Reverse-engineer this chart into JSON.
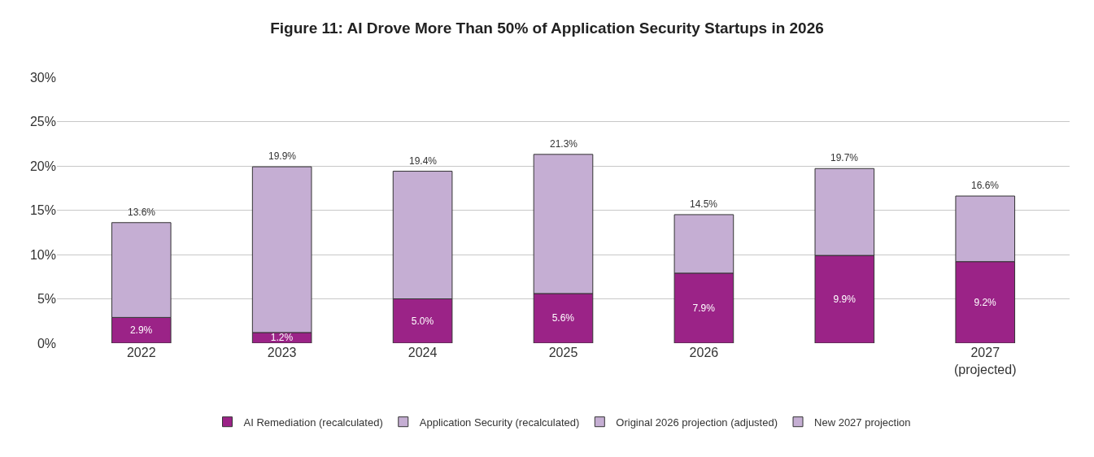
{
  "chart_data": {
    "type": "bar",
    "stacked": true,
    "title": "Figure 11: AI Drove More Than 50% of Application Security Startups in 2026",
    "categories": [
      "2022",
      "2023",
      "2024",
      "2025",
      "2026",
      null,
      "2027\n(projected)"
    ],
    "series": [
      {
        "name": "AI Remediation (recalculated)",
        "color": "#9b2387",
        "values": [
          2.9,
          1.2,
          5.0,
          5.6,
          7.9,
          null,
          null
        ],
        "value_labels": [
          "2.9%",
          "1.2%",
          "5.0%",
          "5.6%",
          "7.9%",
          null,
          null
        ]
      },
      {
        "name": "Application Security (recalculated)",
        "color": "#c5aed3",
        "values": [
          10.7,
          18.7,
          14.4,
          15.7,
          6.6,
          null,
          null
        ]
      },
      {
        "color": "#9b2387",
        "values": [
          null,
          null,
          null,
          null,
          null,
          9.9,
          null
        ],
        "value_labels": [
          null,
          null,
          null,
          null,
          null,
          "9.9%",
          null
        ]
      },
      {
        "name": "Original 2026 projection (adjusted)",
        "color": "#c5aed3",
        "values": [
          null,
          null,
          null,
          null,
          null,
          9.8,
          null
        ]
      },
      {
        "color": "#9b2387",
        "values": [
          null,
          null,
          null,
          null,
          null,
          null,
          9.2
        ],
        "value_labels": [
          null,
          null,
          null,
          null,
          null,
          null,
          "9.2%"
        ]
      },
      {
        "name": "New 2027 projection",
        "color": "#c5aed3",
        "values": [
          null,
          null,
          null,
          null,
          null,
          null,
          7.4
        ]
      }
    ],
    "totals": [
      "13.6%",
      "19.9%",
      "19.4%",
      "21.3%",
      "14.5%",
      "19.7%",
      "16.6%"
    ],
    "ylim": [
      0,
      30
    ],
    "yticks": [
      {
        "value": 0,
        "label": "0%"
      },
      {
        "value": 5,
        "label": "5%"
      },
      {
        "value": 10,
        "label": "10%"
      },
      {
        "value": 15,
        "label": "15%"
      },
      {
        "value": 20,
        "label": "20%"
      },
      {
        "value": 25,
        "label": "25%"
      },
      {
        "value": 30,
        "label": "30%"
      }
    ],
    "grid": "y",
    "legend": "bottom"
  }
}
